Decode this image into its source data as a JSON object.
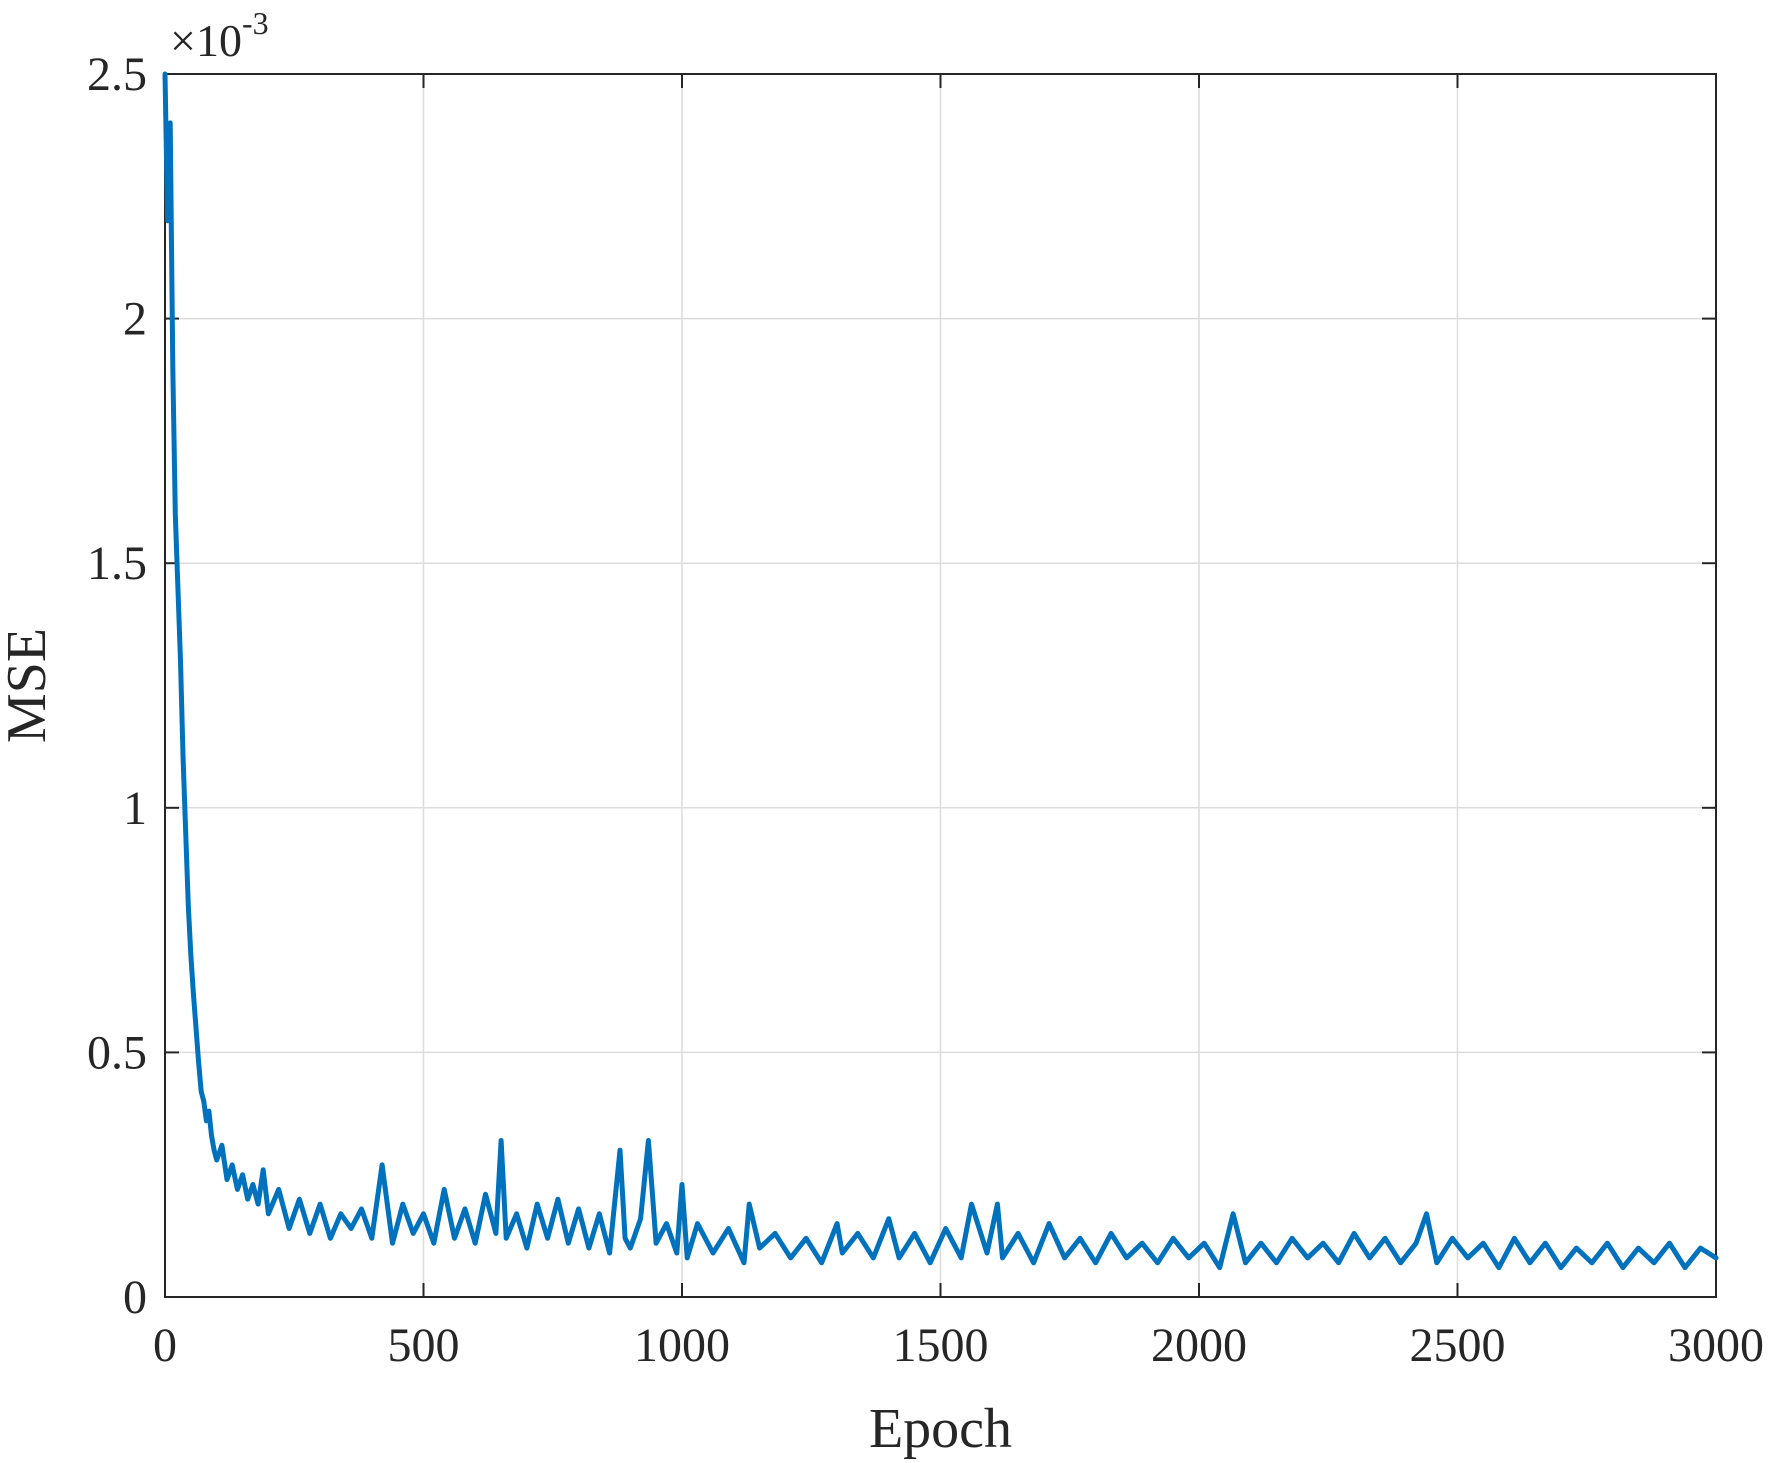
{
  "chart_data": {
    "type": "line",
    "title": "",
    "xlabel": "Epoch",
    "ylabel": "MSE",
    "y_multiplier": {
      "base": "×10",
      "exponent": "-3"
    },
    "xlim": [
      0,
      3000
    ],
    "ylim": [
      0,
      2.5
    ],
    "xticks": [
      0,
      500,
      1000,
      1500,
      2000,
      2500,
      3000
    ],
    "yticks": [
      0,
      0.5,
      1,
      1.5,
      2,
      2.5
    ],
    "xtick_labels": [
      "0",
      "500",
      "1000",
      "1500",
      "2000",
      "2500",
      "3000"
    ],
    "ytick_labels": [
      "0",
      "0.5",
      "1",
      "1.5",
      "2",
      "2.5"
    ],
    "grid": true,
    "line_color": "#0072BD",
    "series": [
      {
        "x": [
          0,
          5,
          10,
          15,
          20,
          25,
          30,
          35,
          40,
          45,
          50,
          55,
          60,
          65,
          70,
          75,
          80,
          85,
          90,
          95,
          100,
          110,
          120,
          130,
          140,
          150,
          160,
          170,
          180,
          190,
          200,
          220,
          240,
          260,
          280,
          300,
          320,
          340,
          360,
          380,
          400,
          420,
          440,
          460,
          480,
          500,
          520,
          540,
          560,
          580,
          600,
          620,
          640,
          650,
          660,
          680,
          700,
          720,
          740,
          760,
          780,
          800,
          820,
          840,
          860,
          880,
          890,
          900,
          920,
          935,
          950,
          970,
          990,
          1000,
          1010,
          1030,
          1060,
          1090,
          1120,
          1130,
          1150,
          1180,
          1210,
          1240,
          1270,
          1300,
          1310,
          1340,
          1370,
          1400,
          1420,
          1450,
          1480,
          1510,
          1540,
          1560,
          1590,
          1610,
          1620,
          1650,
          1680,
          1710,
          1740,
          1770,
          1800,
          1830,
          1860,
          1890,
          1920,
          1950,
          1980,
          2010,
          2040,
          2066,
          2090,
          2120,
          2150,
          2180,
          2210,
          2240,
          2270,
          2300,
          2330,
          2360,
          2390,
          2420,
          2440,
          2460,
          2490,
          2520,
          2550,
          2580,
          2610,
          2640,
          2670,
          2700,
          2730,
          2760,
          2790,
          2820,
          2850,
          2880,
          2910,
          2940,
          2970,
          3000
        ],
        "y": [
          2.5,
          2.2,
          2.4,
          1.9,
          1.6,
          1.45,
          1.3,
          1.1,
          0.95,
          0.8,
          0.7,
          0.62,
          0.55,
          0.48,
          0.42,
          0.4,
          0.36,
          0.38,
          0.33,
          0.3,
          0.28,
          0.31,
          0.24,
          0.27,
          0.22,
          0.25,
          0.2,
          0.23,
          0.19,
          0.26,
          0.17,
          0.22,
          0.14,
          0.2,
          0.13,
          0.19,
          0.12,
          0.17,
          0.14,
          0.18,
          0.12,
          0.27,
          0.11,
          0.19,
          0.13,
          0.17,
          0.11,
          0.22,
          0.12,
          0.18,
          0.11,
          0.21,
          0.13,
          0.32,
          0.12,
          0.17,
          0.1,
          0.19,
          0.12,
          0.2,
          0.11,
          0.18,
          0.1,
          0.17,
          0.09,
          0.3,
          0.12,
          0.1,
          0.16,
          0.32,
          0.11,
          0.15,
          0.09,
          0.23,
          0.08,
          0.15,
          0.09,
          0.14,
          0.07,
          0.19,
          0.1,
          0.13,
          0.08,
          0.12,
          0.07,
          0.15,
          0.09,
          0.13,
          0.08,
          0.16,
          0.08,
          0.13,
          0.07,
          0.14,
          0.08,
          0.19,
          0.09,
          0.19,
          0.08,
          0.13,
          0.07,
          0.15,
          0.08,
          0.12,
          0.07,
          0.13,
          0.08,
          0.11,
          0.07,
          0.12,
          0.08,
          0.11,
          0.06,
          0.17,
          0.07,
          0.11,
          0.07,
          0.12,
          0.08,
          0.11,
          0.07,
          0.13,
          0.08,
          0.12,
          0.07,
          0.11,
          0.17,
          0.07,
          0.12,
          0.08,
          0.11,
          0.06,
          0.12,
          0.07,
          0.11,
          0.06,
          0.1,
          0.07,
          0.11,
          0.06,
          0.1,
          0.07,
          0.11,
          0.06,
          0.1,
          0.08
        ]
      }
    ]
  }
}
